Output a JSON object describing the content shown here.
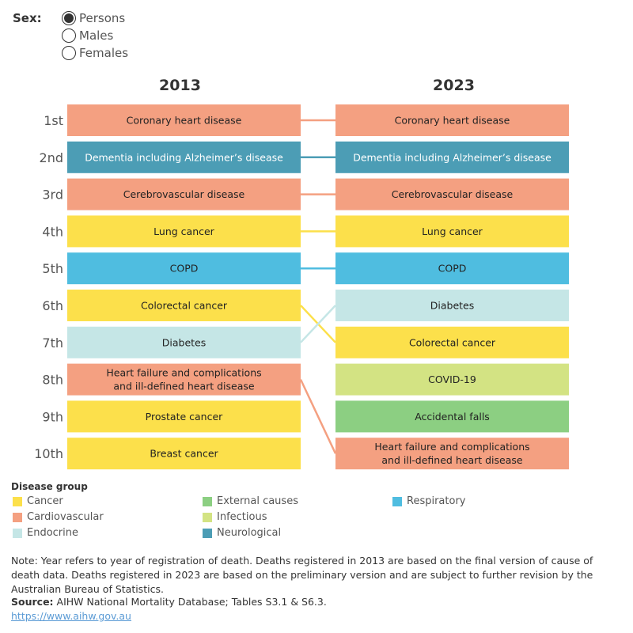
{
  "filter": {
    "label": "Sex:",
    "options": [
      "Persons",
      "Males",
      "Females"
    ],
    "selected": "Persons"
  },
  "colors": {
    "Cancer": "#fce04b",
    "Cardiovascular": "#f4a081",
    "Endocrine": "#c5e6e6",
    "External causes": "#8ccf82",
    "Infectious": "#d3e383",
    "Neurological": "#4c9db5",
    "Respiratory": "#4fbde0"
  },
  "chart_data": {
    "type": "table",
    "columns": [
      "2013",
      "2023"
    ],
    "ranks": [
      "1st",
      "2nd",
      "3rd",
      "4th",
      "5th",
      "6th",
      "7th",
      "8th",
      "9th",
      "10th"
    ],
    "y2013": [
      {
        "label": "Coronary heart disease",
        "group": "Cardiovascular"
      },
      {
        "label": "Dementia including Alzheimer’s disease",
        "group": "Neurological"
      },
      {
        "label": "Cerebrovascular disease",
        "group": "Cardiovascular"
      },
      {
        "label": "Lung cancer",
        "group": "Cancer"
      },
      {
        "label": "COPD",
        "group": "Respiratory"
      },
      {
        "label": "Colorectal cancer",
        "group": "Cancer"
      },
      {
        "label": "Diabetes",
        "group": "Endocrine"
      },
      {
        "label": "Heart failure and complications\nand ill-defined heart disease",
        "group": "Cardiovascular"
      },
      {
        "label": "Prostate cancer",
        "group": "Cancer"
      },
      {
        "label": "Breast cancer",
        "group": "Cancer"
      }
    ],
    "y2023": [
      {
        "label": "Coronary heart disease",
        "group": "Cardiovascular"
      },
      {
        "label": "Dementia including Alzheimer’s disease",
        "group": "Neurological"
      },
      {
        "label": "Cerebrovascular disease",
        "group": "Cardiovascular"
      },
      {
        "label": "Lung cancer",
        "group": "Cancer"
      },
      {
        "label": "COPD",
        "group": "Respiratory"
      },
      {
        "label": "Diabetes",
        "group": "Endocrine"
      },
      {
        "label": "Colorectal cancer",
        "group": "Cancer"
      },
      {
        "label": "COVID-19",
        "group": "Infectious"
      },
      {
        "label": "Accidental falls",
        "group": "External causes"
      },
      {
        "label": "Heart failure and complications\nand ill-defined heart disease",
        "group": "Cardiovascular"
      }
    ],
    "links": [
      {
        "from": 1,
        "to": 1
      },
      {
        "from": 2,
        "to": 2
      },
      {
        "from": 3,
        "to": 3
      },
      {
        "from": 4,
        "to": 4
      },
      {
        "from": 5,
        "to": 5
      },
      {
        "from": 6,
        "to": 7
      },
      {
        "from": 7,
        "to": 6
      },
      {
        "from": 8,
        "to": 10
      }
    ]
  },
  "legend": {
    "title": "Disease group",
    "items": [
      "Cancer",
      "Cardiovascular",
      "Endocrine",
      "External causes",
      "Infectious",
      "Neurological",
      "Respiratory"
    ]
  },
  "note": "Note: Year refers to year of registration of death. Deaths registered in 2013 are based on the final version of cause of death data. Deaths registered in 2023 are based on the preliminary version and are subject to further revision by the Australian Bureau of Statistics.",
  "source": {
    "label": "Source:",
    "text": " AIHW National Mortality Database; Tables S3.1 & S6.3."
  },
  "link": "https://www.aihw.gov.au"
}
